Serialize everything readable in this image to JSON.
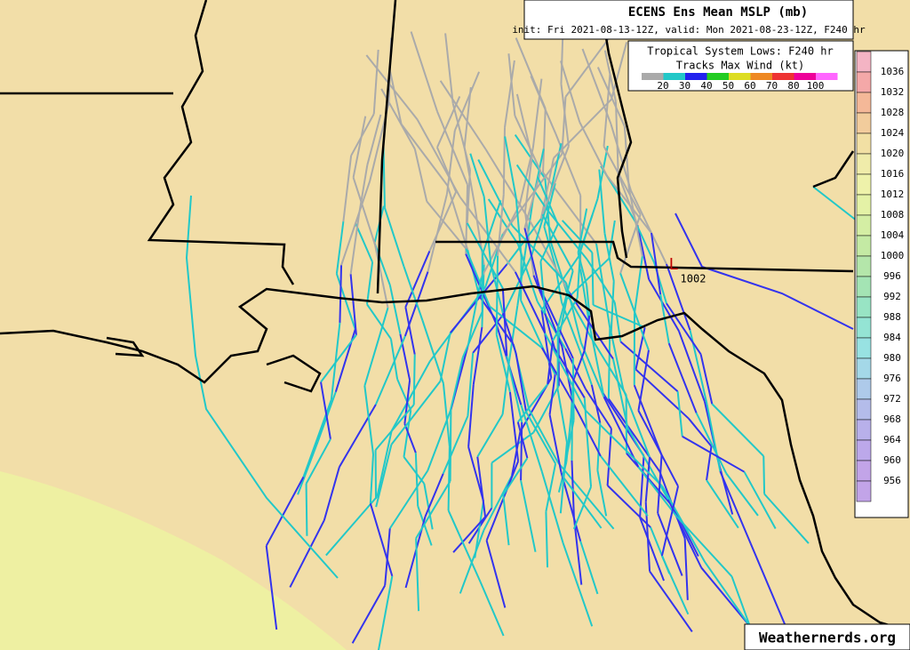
{
  "header": {
    "title": "ECENS Ens Mean MSLP (mb)",
    "subtitle": "init: Fri 2021-08-13-12Z, valid: Mon 2021-08-23-12Z, F240 hr"
  },
  "track_legend": {
    "title": "Tropical System Lows: F240 hr",
    "subtitle": "Tracks Max Wind (kt)",
    "labels": [
      20,
      30,
      40,
      50,
      60,
      70,
      80,
      100
    ]
  },
  "pressure_scale": {
    "labels": [
      1036,
      1032,
      1028,
      1024,
      1020,
      1016,
      1012,
      1008,
      1004,
      1000,
      996,
      992,
      988,
      984,
      980,
      976,
      972,
      968,
      964,
      960,
      956
    ]
  },
  "low": {
    "symbol": "L",
    "pressure": 1002
  },
  "credit": "Weathernerds.org"
}
